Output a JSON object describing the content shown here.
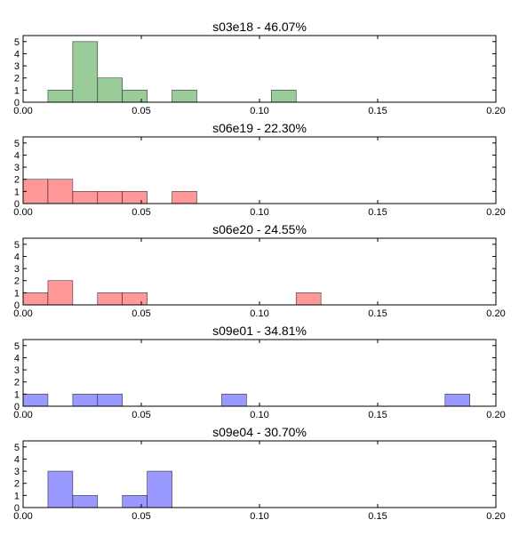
{
  "chart_data": [
    {
      "type": "bar",
      "title": "s03e18 - 46.07%",
      "color": "#99cc99",
      "xlim": [
        0,
        0.2
      ],
      "ylim": [
        0,
        5.5
      ],
      "xticks": [
        "0.00",
        "0.05",
        "0.10",
        "0.15",
        "0.20"
      ],
      "yticks": [
        "0",
        "1",
        "2",
        "3",
        "4",
        "5"
      ],
      "bins": [
        {
          "x0": 0.0105,
          "x1": 0.021,
          "count": 1
        },
        {
          "x0": 0.021,
          "x1": 0.0315,
          "count": 5
        },
        {
          "x0": 0.0315,
          "x1": 0.042,
          "count": 2
        },
        {
          "x0": 0.042,
          "x1": 0.0525,
          "count": 1
        },
        {
          "x0": 0.063,
          "x1": 0.0735,
          "count": 1
        },
        {
          "x0": 0.105,
          "x1": 0.1155,
          "count": 1
        }
      ]
    },
    {
      "type": "bar",
      "title": "s06e19 - 22.30%",
      "color": "#ff9999",
      "xlim": [
        0,
        0.2
      ],
      "ylim": [
        0,
        5.5
      ],
      "xticks": [
        "0.00",
        "0.05",
        "0.10",
        "0.15",
        "0.20"
      ],
      "yticks": [
        "0",
        "1",
        "2",
        "3",
        "4",
        "5"
      ],
      "bins": [
        {
          "x0": 0.0,
          "x1": 0.0105,
          "count": 2
        },
        {
          "x0": 0.0105,
          "x1": 0.021,
          "count": 2
        },
        {
          "x0": 0.021,
          "x1": 0.0315,
          "count": 1
        },
        {
          "x0": 0.0315,
          "x1": 0.042,
          "count": 1
        },
        {
          "x0": 0.042,
          "x1": 0.0525,
          "count": 1
        },
        {
          "x0": 0.063,
          "x1": 0.0735,
          "count": 1
        }
      ]
    },
    {
      "type": "bar",
      "title": "s06e20 - 24.55%",
      "color": "#ff9999",
      "xlim": [
        0,
        0.2
      ],
      "ylim": [
        0,
        5.5
      ],
      "xticks": [
        "0.00",
        "0.05",
        "0.10",
        "0.15",
        "0.20"
      ],
      "yticks": [
        "0",
        "1",
        "2",
        "3",
        "4",
        "5"
      ],
      "bins": [
        {
          "x0": 0.0,
          "x1": 0.0105,
          "count": 1
        },
        {
          "x0": 0.0105,
          "x1": 0.021,
          "count": 2
        },
        {
          "x0": 0.0315,
          "x1": 0.042,
          "count": 1
        },
        {
          "x0": 0.042,
          "x1": 0.0525,
          "count": 1
        },
        {
          "x0": 0.1155,
          "x1": 0.126,
          "count": 1
        }
      ]
    },
    {
      "type": "bar",
      "title": "s09e01 - 34.81%",
      "color": "#9999ff",
      "xlim": [
        0,
        0.2
      ],
      "ylim": [
        0,
        5.5
      ],
      "xticks": [
        "0.00",
        "0.05",
        "0.10",
        "0.15",
        "0.20"
      ],
      "yticks": [
        "0",
        "1",
        "2",
        "3",
        "4",
        "5"
      ],
      "bins": [
        {
          "x0": 0.0,
          "x1": 0.0105,
          "count": 1
        },
        {
          "x0": 0.021,
          "x1": 0.0315,
          "count": 1
        },
        {
          "x0": 0.0315,
          "x1": 0.042,
          "count": 1
        },
        {
          "x0": 0.084,
          "x1": 0.0945,
          "count": 1
        },
        {
          "x0": 0.1785,
          "x1": 0.189,
          "count": 1
        }
      ]
    },
    {
      "type": "bar",
      "title": "s09e04 - 30.70%",
      "color": "#9999ff",
      "xlim": [
        0,
        0.2
      ],
      "ylim": [
        0,
        5.5
      ],
      "xticks": [
        "0.00",
        "0.05",
        "0.10",
        "0.15",
        "0.20"
      ],
      "yticks": [
        "0",
        "1",
        "2",
        "3",
        "4",
        "5"
      ],
      "bins": [
        {
          "x0": 0.0105,
          "x1": 0.021,
          "count": 3
        },
        {
          "x0": 0.021,
          "x1": 0.0315,
          "count": 1
        },
        {
          "x0": 0.042,
          "x1": 0.0525,
          "count": 1
        },
        {
          "x0": 0.0525,
          "x1": 0.063,
          "count": 3
        }
      ]
    }
  ]
}
